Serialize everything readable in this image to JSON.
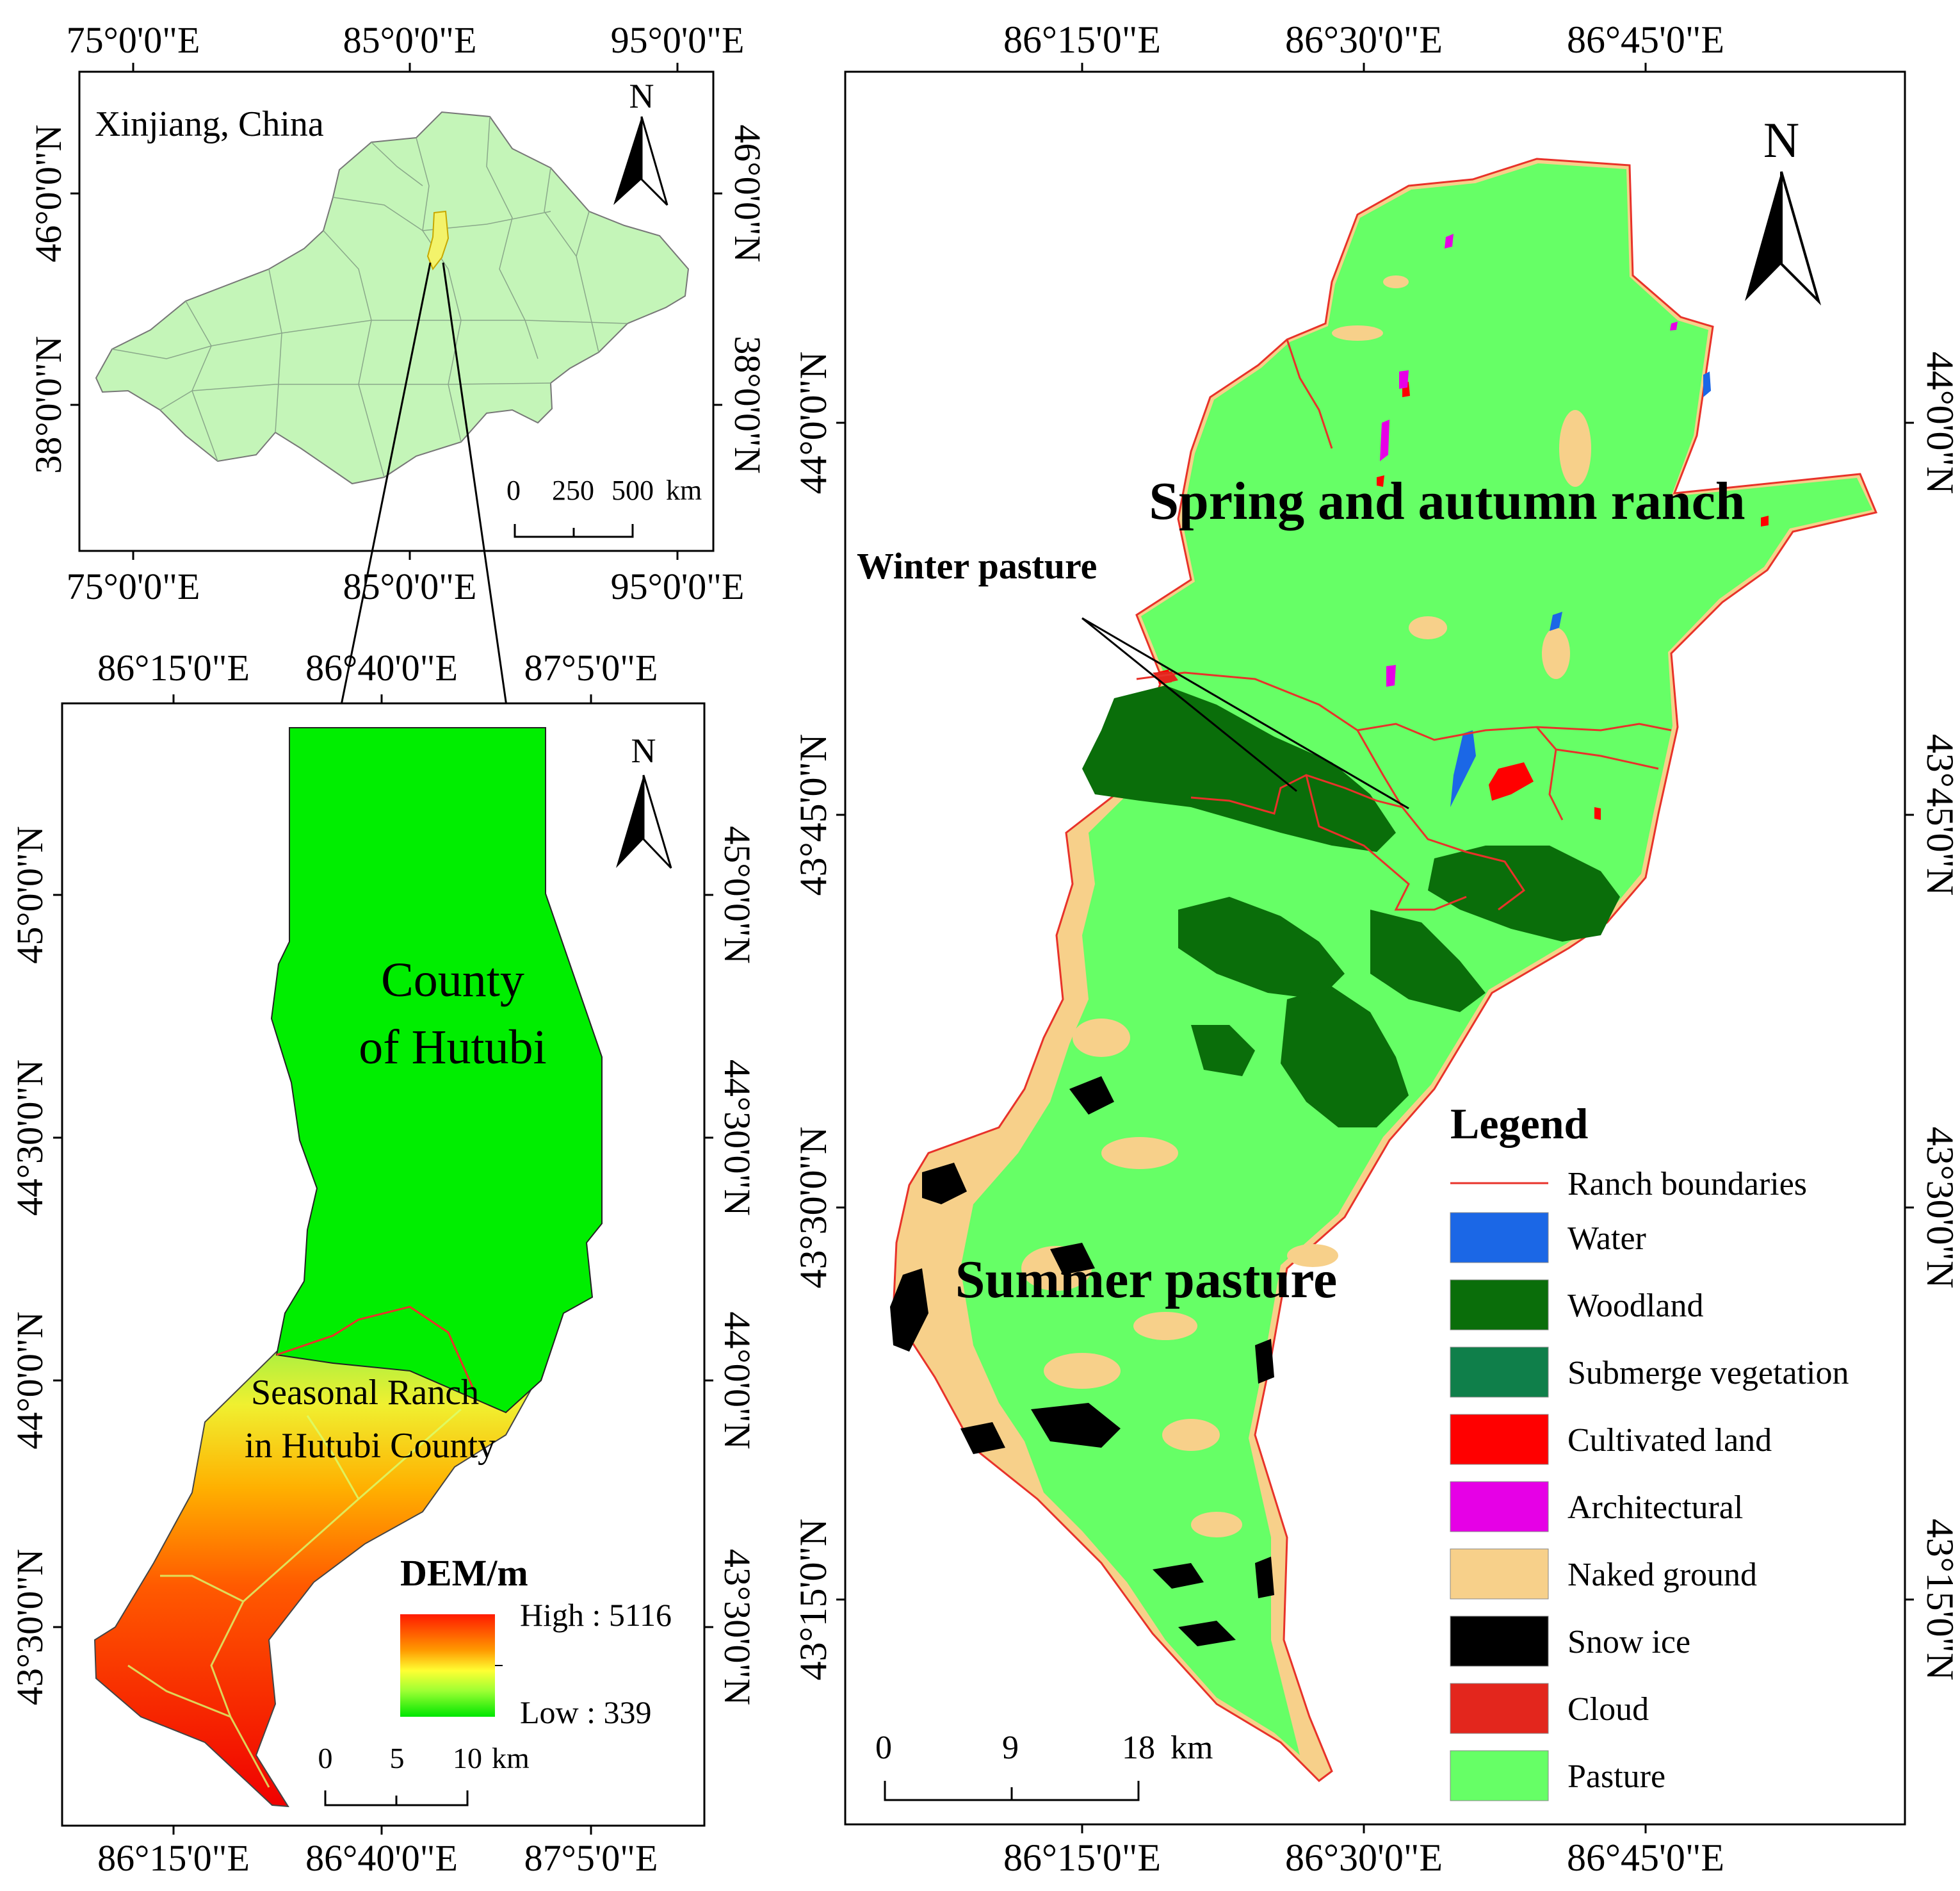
{
  "inset_xinjiang": {
    "label": "Xinjiang, China",
    "lon_ticks": [
      "75°0'0\"E",
      "85°0'0\"E",
      "95°0'0\"E"
    ],
    "lat_ticks": [
      "46°0'0\"N",
      "38°0'0\"N"
    ],
    "north": "N",
    "scale": {
      "labels": [
        "0",
        "250",
        "500"
      ],
      "unit": "km"
    },
    "colors": {
      "province": "#c4f5b8",
      "highlight": "#f3f36a"
    }
  },
  "panel_hutubi": {
    "title_line1": "County",
    "title_line2": "of Hutubi",
    "ranch_line1": "Seasonal Ranch",
    "ranch_line2": "in Hutubi County",
    "lon_ticks": [
      "86°15'0\"E",
      "86°40'0\"E",
      "87°5'0\"E"
    ],
    "lat_ticks": [
      "45°0'0\"N",
      "44°30'0\"N",
      "44°0'0\"N",
      "43°30'0\"N"
    ],
    "north": "N",
    "dem": {
      "title": "DEM/m",
      "high": "High : 5116",
      "low": "Low : 339",
      "high_value": 5116,
      "low_value": 339
    },
    "scale": {
      "labels": [
        "0",
        "5",
        "10"
      ],
      "unit": "km"
    },
    "colors": {
      "county": "#00ee00"
    }
  },
  "panel_landuse": {
    "lon_ticks": [
      "86°15'0\"E",
      "86°30'0\"E",
      "86°45'0\"E"
    ],
    "lat_ticks": [
      "44°0'0\"N",
      "43°45'0\"N",
      "43°30'0\"N",
      "43°15'0\"N"
    ],
    "north": "N",
    "labels": {
      "spring_autumn": "Spring and autumn ranch",
      "winter": "Winter pasture",
      "summer": "Summer pasture"
    },
    "scale": {
      "labels": [
        "0",
        "9",
        "18"
      ],
      "unit": "km"
    },
    "legend": {
      "title": "Legend",
      "boundary": {
        "label": "Ranch boundaries",
        "color": "#e8322a"
      },
      "items": [
        {
          "label": "Water",
          "color": "#1b67e6"
        },
        {
          "label": "Woodland",
          "color": "#0a6e0a"
        },
        {
          "label": "Submerge vegetation",
          "color": "#0f7f4a"
        },
        {
          "label": "Cultivated land",
          "color": "#ff0000"
        },
        {
          "label": "Architectural",
          "color": "#e600e6"
        },
        {
          "label": "Naked ground",
          "color": "#f7d08a"
        },
        {
          "label": "Snow ice",
          "color": "#000000"
        },
        {
          "label": "Cloud",
          "color": "#e3261d"
        },
        {
          "label": "Pasture",
          "color": "#66ff66"
        }
      ]
    }
  }
}
